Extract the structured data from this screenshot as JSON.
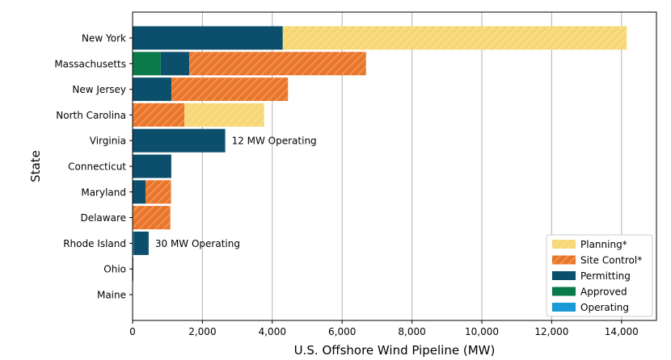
{
  "chart_data": {
    "type": "bar",
    "orientation": "horizontal",
    "stacked": true,
    "xlabel": "U.S. Offshore Wind Pipeline (MW)",
    "ylabel": "State",
    "xlim": [
      0,
      15000
    ],
    "xticks": [
      0,
      2000,
      4000,
      6000,
      8000,
      10000,
      12000,
      14000
    ],
    "xtick_labels": [
      "0",
      "2,000",
      "4,000",
      "6,000",
      "8,000",
      "10,000",
      "12,000",
      "14,000"
    ],
    "grid": "vertical",
    "legend_position": "bottom-right",
    "categories": [
      "New York",
      "Massachusetts",
      "New Jersey",
      "North Carolina",
      "Virginia",
      "Connecticut",
      "Maryland",
      "Delaware",
      "Rhode Island",
      "Ohio",
      "Maine"
    ],
    "series": [
      {
        "name": "Operating",
        "color": "#1a9bd7",
        "pattern": "solid",
        "values": [
          0,
          0,
          0,
          0,
          12,
          0,
          0,
          0,
          30,
          0,
          0
        ]
      },
      {
        "name": "Approved",
        "color": "#0a7a4a",
        "pattern": "solid",
        "values": [
          0,
          806,
          0,
          0,
          0,
          0,
          0,
          0,
          0,
          0,
          0
        ]
      },
      {
        "name": "Permitting",
        "color": "#0b4f6c",
        "pattern": "solid",
        "values": [
          4300,
          818,
          1110,
          0,
          2640,
          1108,
          370,
          0,
          430,
          21,
          0
        ]
      },
      {
        "name": "Site Control*",
        "color": "#e9762b",
        "pattern": "hatch",
        "values": [
          0,
          5060,
          3340,
          1486,
          0,
          0,
          730,
          1080,
          0,
          0,
          0
        ]
      },
      {
        "name": "Planning*",
        "color": "#f7d774",
        "pattern": "hatch",
        "values": [
          9850,
          0,
          0,
          2280,
          0,
          0,
          0,
          0,
          0,
          0,
          0
        ]
      }
    ],
    "annotations": [
      {
        "category": "Virginia",
        "text": "12 MW Operating"
      },
      {
        "category": "Rhode Island",
        "text": "30 MW Operating"
      }
    ]
  }
}
